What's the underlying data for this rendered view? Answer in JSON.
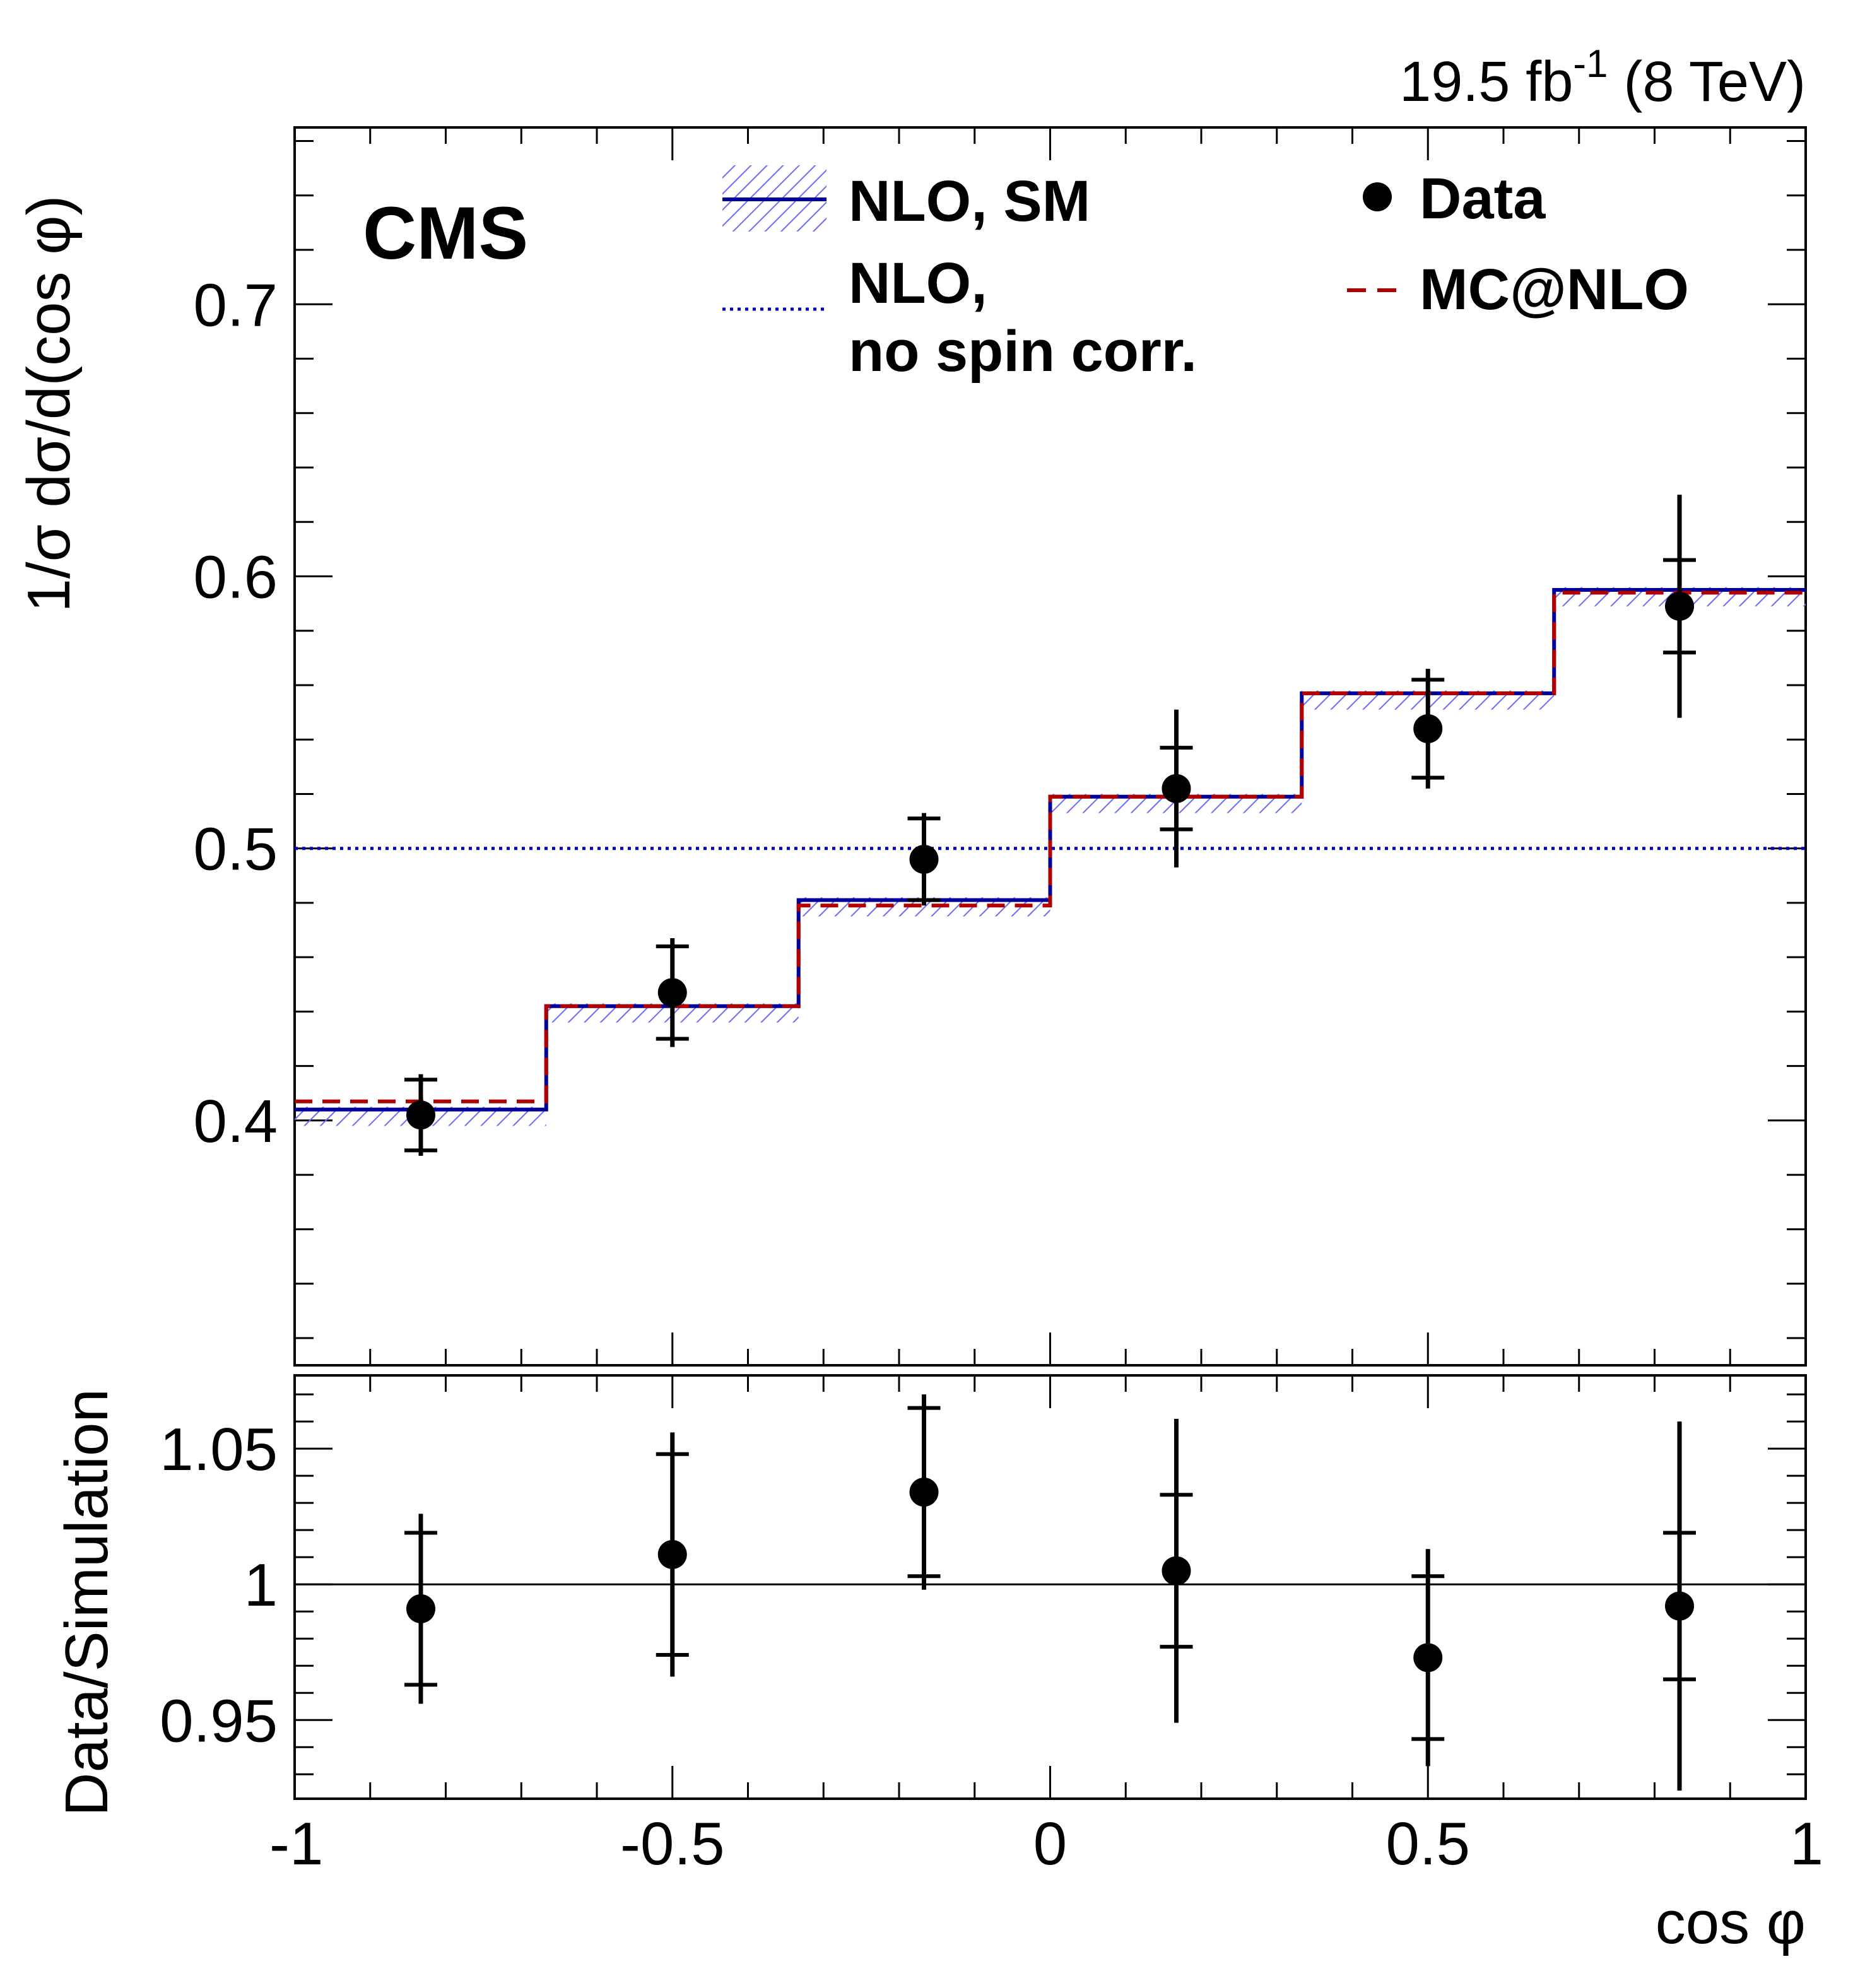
{
  "header": {
    "experiment": "CMS",
    "luminosity_value": "19.5 fb",
    "luminosity_exponent": "-1",
    "energy": "(8 TeV)"
  },
  "legend": {
    "nlo_sm": "NLO, SM",
    "nlo_nospin_line1": "NLO,",
    "nlo_nospin_line2": "no spin corr.",
    "data": "Data",
    "mcatnlo": "MC@NLO"
  },
  "colors": {
    "nlo_sm": "#00009a",
    "nlo_band": "#6a6aff",
    "nlo_nospin": "#0000cc",
    "mcatnlo": "#b00000",
    "data": "#000000"
  },
  "chart_data": [
    {
      "type": "line",
      "panel": "main",
      "ylabel": "1/σ dσ/d(cos φ)",
      "xlabel": "cos φ",
      "xlim": [
        -1,
        1
      ],
      "ylim": [
        0.31,
        0.765
      ],
      "yticks": [
        0.4,
        0.5,
        0.6,
        0.7
      ],
      "ytick_labels": [
        "0.4",
        "0.5",
        "0.6",
        "0.7"
      ],
      "bin_edges": [
        -1,
        -0.667,
        -0.333,
        0,
        0.333,
        0.667,
        1
      ],
      "bin_centers": [
        -0.833,
        -0.5,
        -0.167,
        0.167,
        0.5,
        0.833
      ],
      "series": [
        {
          "name": "NLO, SM",
          "style": "histogram-solid",
          "values": [
            0.404,
            0.442,
            0.481,
            0.519,
            0.557,
            0.595
          ],
          "band": 0.002
        },
        {
          "name": "MC@NLO",
          "style": "histogram-dashed",
          "values": [
            0.407,
            0.442,
            0.479,
            0.519,
            0.557,
            0.594
          ]
        },
        {
          "name": "NLO, no spin corr.",
          "style": "flat-dotted",
          "value": 0.5
        },
        {
          "name": "Data",
          "style": "points",
          "values": [
            0.402,
            0.447,
            0.496,
            0.522,
            0.544,
            0.589
          ],
          "stat_err": [
            0.013,
            0.017,
            0.015,
            0.015,
            0.018,
            0.017
          ],
          "total_err": [
            0.015,
            0.02,
            0.017,
            0.029,
            0.022,
            0.041
          ]
        }
      ]
    },
    {
      "type": "scatter",
      "panel": "ratio",
      "ylabel": "Data/Simulation",
      "xlabel": "cos φ",
      "xlim": [
        -1,
        1
      ],
      "ylim": [
        0.921,
        1.077
      ],
      "yticks": [
        0.95,
        1,
        1.05
      ],
      "ytick_labels": [
        "0.95",
        "1",
        "1.05"
      ],
      "xticks": [
        -1,
        -0.5,
        0,
        0.5,
        1
      ],
      "xtick_labels": [
        "-1",
        "-0.5",
        "0",
        "0.5",
        "1"
      ],
      "reference_line": 1,
      "series": [
        {
          "name": "Data/Simulation",
          "x": [
            -0.833,
            -0.5,
            -0.167,
            0.167,
            0.5,
            0.833
          ],
          "values": [
            0.991,
            1.011,
            1.034,
            1.005,
            0.973,
            0.992
          ],
          "stat_err": [
            0.028,
            0.037,
            0.031,
            0.028,
            0.03,
            0.027
          ],
          "total_err": [
            0.035,
            0.045,
            0.036,
            0.056,
            0.04,
            0.068
          ]
        }
      ]
    }
  ]
}
